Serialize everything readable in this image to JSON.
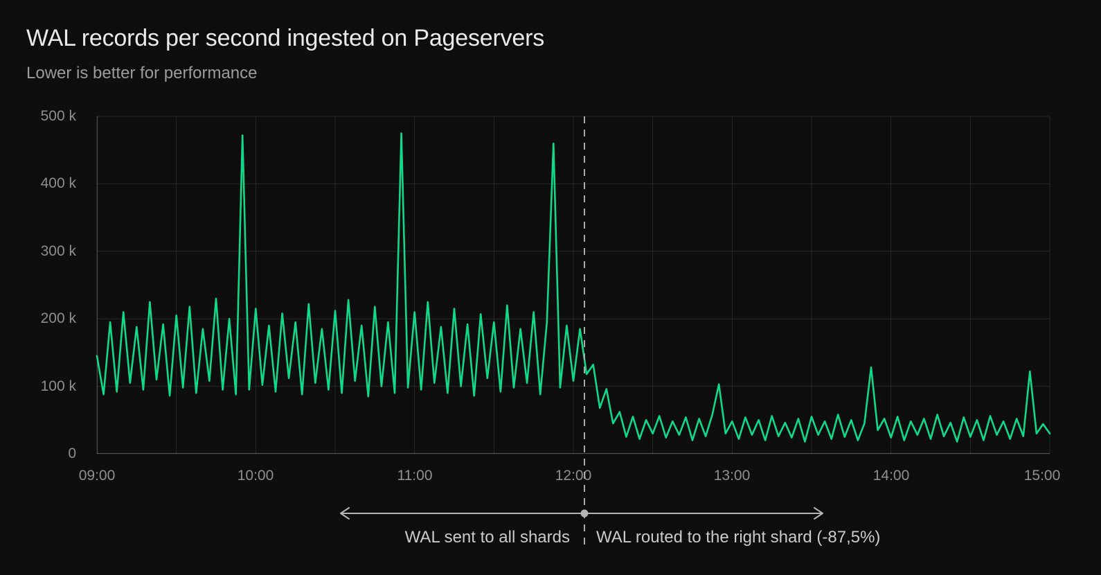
{
  "header": {
    "title": "WAL records per second ingested on Pageservers",
    "subtitle": "Lower is better for performance"
  },
  "chart_data": {
    "type": "line",
    "title": "WAL records per second ingested on Pageservers",
    "subtitle": "Lower is better for performance",
    "grid": true,
    "legend": false,
    "x_axis": {
      "start_time": "09:00",
      "end_time": "15:00",
      "sample_step_minutes": 2.5,
      "tick_labels": [
        "09:00",
        "10:00",
        "11:00",
        "12:00",
        "13:00",
        "14:00",
        "15:00"
      ],
      "gridline_every_minutes": 30
    },
    "y_axis": {
      "min": 0,
      "max": 500000,
      "unit": "records/s",
      "tick_labels": [
        "500 k",
        "400 k",
        "300 k",
        "200 k",
        "100 k",
        "0"
      ]
    },
    "series": [
      {
        "name": "WAL records per second",
        "color": "#12d98a",
        "values_k": [
          145,
          88,
          195,
          92,
          210,
          105,
          188,
          95,
          225,
          110,
          192,
          86,
          205,
          98,
          218,
          90,
          185,
          108,
          230,
          95,
          200,
          88,
          472,
          95,
          215,
          102,
          190,
          92,
          208,
          112,
          195,
          88,
          222,
          105,
          185,
          95,
          212,
          90,
          228,
          108,
          190,
          85,
          218,
          100,
          195,
          90,
          475,
          98,
          210,
          95,
          225,
          105,
          188,
          90,
          215,
          100,
          192,
          86,
          207,
          112,
          195,
          92,
          220,
          98,
          185,
          105,
          210,
          88,
          195,
          460,
          98,
          190,
          108,
          185,
          118,
          132,
          68,
          96,
          45,
          62,
          25,
          55,
          22,
          50,
          30,
          56,
          24,
          48,
          28,
          54,
          20,
          52,
          26,
          58,
          103,
          30,
          48,
          22,
          54,
          28,
          50,
          20,
          56,
          26,
          46,
          24,
          52,
          18,
          55,
          28,
          48,
          22,
          58,
          25,
          50,
          20,
          45,
          128,
          35,
          52,
          24,
          55,
          20,
          48,
          28,
          52,
          22,
          58,
          26,
          46,
          18,
          54,
          25,
          50,
          20,
          56,
          28,
          48,
          22,
          52,
          26,
          122,
          30,
          44,
          30
        ]
      }
    ],
    "annotations": {
      "split_line_time": "12:04",
      "left_label": "WAL sent to all shards",
      "right_label": "WAL routed to the right shard (-87,5%)"
    }
  }
}
